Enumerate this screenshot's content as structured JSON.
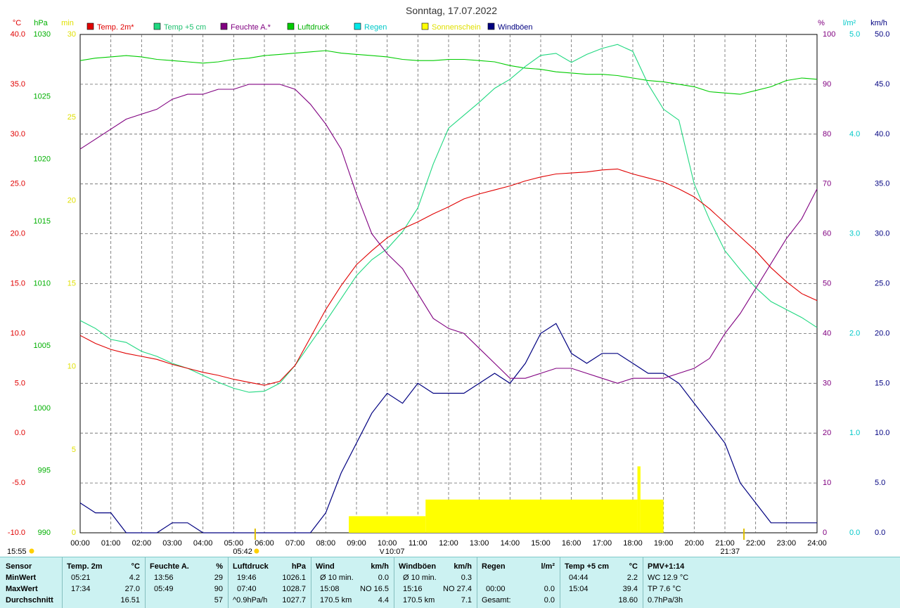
{
  "title": "Sonntag, 17.07.2022",
  "colors": {
    "temp2m": "#e00000",
    "temp5cm": "#20d880",
    "humidity": "#800080",
    "pressure": "#00cc00",
    "rain": "#00e8e8",
    "sun": "#ffff00",
    "gust": "#000080"
  },
  "legend": [
    {
      "label": "Temp. 2m*",
      "color": "#e00000",
      "text_color": "#e00000"
    },
    {
      "label": "Temp +5 cm",
      "color": "#20d880",
      "text_color": "#20c070"
    },
    {
      "label": "Feuchte A.*",
      "color": "#800080",
      "text_color": "#800080"
    },
    {
      "label": "Luftdruck",
      "color": "#00cc00",
      "text_color": "#00b000"
    },
    {
      "label": "Regen",
      "color": "#00e8e8",
      "text_color": "#00c8c8"
    },
    {
      "label": "Sonnenschein",
      "color": "#ffff00",
      "text_color": "#e0e000"
    },
    {
      "label": "Windböen",
      "color": "#000080",
      "text_color": "#000080"
    }
  ],
  "axis_units": {
    "temp": "°C",
    "pressure": "hPa",
    "sun": "min",
    "humidity": "%",
    "rain": "l/m²",
    "wind": "km/h"
  },
  "chart_data": {
    "type": "line",
    "title": "Sonntag, 17.07.2022",
    "x_ticks": [
      "00:00",
      "01:00",
      "02:00",
      "03:00",
      "04:00",
      "05:00",
      "06:00",
      "07:00",
      "08:00",
      "09:00",
      "10:00",
      "11:00",
      "12:00",
      "13:00",
      "14:00",
      "15:00",
      "16:00",
      "17:00",
      "18:00",
      "19:00",
      "20:00",
      "21:00",
      "22:00",
      "23:00",
      "24:00"
    ],
    "axes": {
      "temp": {
        "range": [
          -10,
          40
        ],
        "ticks": [
          "40.0",
          "35.0",
          "30.0",
          "25.0",
          "20.0",
          "15.0",
          "10.0",
          "5.0",
          "0.0",
          "-5.0",
          "-10.0"
        ]
      },
      "pressure": {
        "range": [
          990,
          1030
        ],
        "ticks": [
          "1030",
          "1025",
          "1020",
          "1015",
          "1010",
          "1005",
          "1000",
          "995",
          "990"
        ]
      },
      "sun": {
        "range": [
          0,
          30
        ],
        "ticks": [
          "30",
          "25",
          "20",
          "15",
          "10",
          "5",
          "0"
        ]
      },
      "humidity": {
        "range": [
          0,
          100
        ],
        "ticks": [
          "100",
          "90",
          "80",
          "70",
          "60",
          "50",
          "40",
          "30",
          "20",
          "10",
          "0"
        ]
      },
      "rain": {
        "range": [
          0,
          5
        ],
        "ticks": [
          "5.0",
          "4.0",
          "3.0",
          "2.0",
          "1.0",
          "0.0"
        ]
      },
      "wind": {
        "range": [
          0,
          50
        ],
        "ticks": [
          "50.0",
          "45.0",
          "40.0",
          "35.0",
          "30.0",
          "25.0",
          "20.0",
          "15.0",
          "10.0",
          "5.0",
          "0.0"
        ]
      }
    },
    "x_hours": [
      0,
      0.5,
      1,
      1.5,
      2,
      2.5,
      3,
      3.5,
      4,
      4.5,
      5,
      5.5,
      6,
      6.5,
      7,
      7.5,
      8,
      8.5,
      9,
      9.5,
      10,
      10.5,
      11,
      11.5,
      12,
      12.5,
      13,
      13.5,
      14,
      14.5,
      15,
      15.5,
      16,
      16.5,
      17,
      17.5,
      18,
      18.5,
      19,
      19.5,
      20,
      20.5,
      21,
      21.5,
      22,
      22.5,
      23,
      23.5,
      24
    ],
    "series": [
      {
        "name": "Temp. 2m*",
        "axis": "temp",
        "values": [
          9.8,
          9.0,
          8.4,
          8.0,
          7.7,
          7.4,
          6.9,
          6.5,
          6.1,
          5.8,
          5.4,
          5.1,
          4.8,
          5.2,
          6.8,
          9.6,
          12.4,
          14.8,
          16.9,
          18.3,
          19.6,
          20.5,
          21.2,
          22.0,
          22.7,
          23.5,
          24.0,
          24.4,
          24.8,
          25.3,
          25.7,
          26.0,
          26.1,
          26.2,
          26.4,
          26.5,
          26.0,
          25.6,
          25.2,
          24.5,
          23.7,
          22.5,
          21.1,
          19.7,
          18.3,
          16.6,
          15.2,
          14.0,
          13.3
        ]
      },
      {
        "name": "Temp +5 cm",
        "axis": "temp",
        "values": [
          11.3,
          10.5,
          9.4,
          9.1,
          8.2,
          7.7,
          7.0,
          6.5,
          5.8,
          5.1,
          4.5,
          4.1,
          4.2,
          5.0,
          6.8,
          9.0,
          11.2,
          13.5,
          15.8,
          17.4,
          18.5,
          20.2,
          22.6,
          27.0,
          30.6,
          31.9,
          33.2,
          34.6,
          35.5,
          36.8,
          37.9,
          38.1,
          37.2,
          38.0,
          38.6,
          39.0,
          38.3,
          35.0,
          32.5,
          31.4,
          25.0,
          21.4,
          18.3,
          16.4,
          14.6,
          13.2,
          12.4,
          11.6,
          10.6
        ]
      },
      {
        "name": "Feuchte A.*",
        "axis": "humidity",
        "values": [
          77,
          79,
          81,
          83,
          84,
          85,
          87,
          88,
          88,
          89,
          89,
          90,
          90,
          90,
          89,
          86,
          82,
          77,
          68,
          60,
          56,
          53,
          48,
          43,
          41,
          40,
          37,
          34,
          31,
          31,
          32,
          33,
          33,
          32,
          31,
          30,
          31,
          31,
          31,
          32,
          33,
          35,
          40,
          44,
          49,
          54,
          59,
          63,
          69
        ]
      },
      {
        "name": "Luftdruck",
        "axis": "pressure",
        "values": [
          1027.9,
          1028.1,
          1028.2,
          1028.3,
          1028.2,
          1028.0,
          1027.9,
          1027.8,
          1027.7,
          1027.8,
          1028.0,
          1028.1,
          1028.3,
          1028.4,
          1028.5,
          1028.6,
          1028.7,
          1028.5,
          1028.4,
          1028.3,
          1028.2,
          1028.0,
          1027.9,
          1027.9,
          1028.0,
          1028.0,
          1027.9,
          1027.8,
          1027.5,
          1027.3,
          1027.2,
          1027.0,
          1026.9,
          1026.8,
          1026.8,
          1026.7,
          1026.5,
          1026.3,
          1026.2,
          1026.0,
          1025.8,
          1025.4,
          1025.3,
          1025.2,
          1025.5,
          1025.8,
          1026.3,
          1026.5,
          1026.4
        ]
      },
      {
        "name": "Windböen",
        "axis": "wind",
        "values": [
          3,
          2,
          2,
          0,
          0,
          0,
          1,
          1,
          0,
          0,
          0,
          0,
          0,
          0,
          0,
          0,
          2,
          6,
          9,
          12,
          14,
          13,
          15,
          14,
          14,
          14,
          15,
          16,
          15,
          17,
          20,
          21,
          18,
          17,
          18,
          18,
          17,
          16,
          16,
          15,
          13,
          11,
          9,
          5,
          3,
          1,
          1,
          1,
          1
        ]
      },
      {
        "name": "Sonnenschein",
        "axis": "sun",
        "style": "bars",
        "intervals": [
          [
            8.75,
            11.25,
            1
          ],
          [
            11.25,
            18.15,
            2
          ],
          [
            18.15,
            18.25,
            4
          ],
          [
            18.25,
            19.0,
            2
          ]
        ]
      }
    ],
    "markers": {
      "sunrise": "05:42",
      "sunset": "21:37",
      "left": "15:55",
      "center": "10:07",
      "sunrise_hour": 5.7,
      "sunset_hour": 21.62,
      "center_hour": 10.12
    },
    "grid": true
  },
  "footer": {
    "sensor": {
      "title": "Sensor",
      "rows": [
        "MinWert",
        "MaxWert",
        "Durchschnitt"
      ]
    },
    "temp2m": {
      "title": "Temp. 2m",
      "unit": "°C",
      "min_time": "05:21",
      "min": "4.2",
      "max_time": "17:34",
      "max": "27.0",
      "avg": "16.51"
    },
    "humidity": {
      "title": "Feuchte A.",
      "unit": "%",
      "min_time": "13:56",
      "min": "29",
      "max_time": "05:49",
      "max": "90",
      "avg": "57"
    },
    "pressure": {
      "title": "Luftdruck",
      "unit": "hPa",
      "min_time": "19:46",
      "min": "1026.1",
      "max_time": "07:40",
      "max": "1028.7",
      "trend": "^0.9hPa/h",
      "avg": "1027.7"
    },
    "wind": {
      "title": "Wind",
      "unit": "km/h",
      "r1_label": "Ø 10 min.",
      "r1_val": "0.0",
      "r2_label": "15:08",
      "r2_dir": "NO 16.5",
      "r3_label": "170.5 km",
      "r3_val": "4.4"
    },
    "gust": {
      "title": "Windböen",
      "unit": "km/h",
      "r1_label": "Ø 10 min.",
      "r1_val": "0.3",
      "r2_label": "15:16",
      "r2_dir": "NO 27.4",
      "r3_label": "170.5 km",
      "r3_val": "7.1"
    },
    "rain": {
      "title": "Regen",
      "unit": "l/m²",
      "r2_label": "00:00",
      "r2_val": "0.0",
      "r3_label": "Gesamt:",
      "r3_val": "0.0"
    },
    "temp5": {
      "title": "Temp +5 cm",
      "unit": "°C",
      "min_time": "04:44",
      "min": "2.2",
      "max_time": "15:04",
      "max": "39.4",
      "avg": "18.60"
    },
    "pmv": {
      "title": "PMV+1:14",
      "r1": "WC 12.9 °C",
      "r2": "TP 7.6 °C",
      "r3": "0.7hPa/3h"
    }
  }
}
